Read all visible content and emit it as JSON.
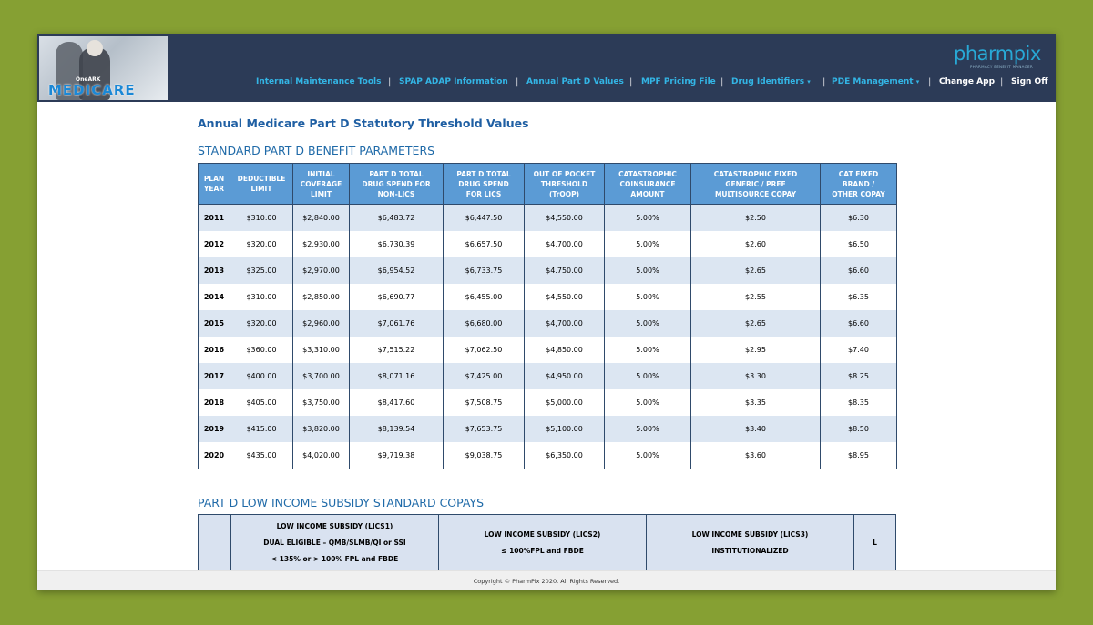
{
  "header": {
    "logo": {
      "small": "OneARK",
      "big": "MEDICARE"
    },
    "brand": {
      "name": "pharmpix",
      "tagline": "PHARMACY BENEFIT MANAGER"
    },
    "nav": [
      {
        "label": "Internal Maintenance Tools",
        "dropdown": false
      },
      {
        "label": "SPAP ADAP Information",
        "dropdown": false
      },
      {
        "label": "Annual Part D Values",
        "dropdown": false
      },
      {
        "label": "MPF Pricing File",
        "dropdown": false
      },
      {
        "label": "Drug Identifiers",
        "dropdown": true
      },
      {
        "label": "PDE Management",
        "dropdown": true
      }
    ],
    "change_app": "Change App",
    "sign_off": "Sign Off",
    "caret": "▾",
    "separator": "|"
  },
  "page": {
    "title": "Annual Medicare Part D Statutory Threshold Values",
    "section1_title": "STANDARD PART D BENEFIT PARAMETERS",
    "section2_title": "PART D LOW INCOME SUBSIDY STANDARD COPAYS"
  },
  "benefit_table": {
    "columns": [
      [
        "PLAN",
        "YEAR"
      ],
      [
        "DEDUCTIBLE",
        "LIMIT"
      ],
      [
        "INITIAL",
        "COVERAGE",
        "LIMIT"
      ],
      [
        "PART D TOTAL",
        "DRUG SPEND FOR",
        "NON-LICS"
      ],
      [
        "PART D TOTAL",
        "DRUG SPEND",
        "FOR LICS"
      ],
      [
        "OUT OF POCKET",
        "THRESHOLD",
        "(TrOOP)"
      ],
      [
        "CATASTROPHIC",
        "COINSURANCE",
        "AMOUNT"
      ],
      [
        "CATASTROPHIC FIXED",
        "GENERIC / PREF",
        "MULTISOURCE COPAY"
      ],
      [
        "CAT FIXED",
        "BRAND /",
        "OTHER COPAY"
      ]
    ],
    "rows": [
      [
        "2011",
        "$310.00",
        "$2,840.00",
        "$6,483.72",
        "$6,447.50",
        "$4,550.00",
        "5.00%",
        "$2.50",
        "$6.30"
      ],
      [
        "2012",
        "$320.00",
        "$2,930.00",
        "$6,730.39",
        "$6,657.50",
        "$4,700.00",
        "5.00%",
        "$2.60",
        "$6.50"
      ],
      [
        "2013",
        "$325.00",
        "$2,970.00",
        "$6,954.52",
        "$6,733.75",
        "$4.750.00",
        "5.00%",
        "$2.65",
        "$6.60"
      ],
      [
        "2014",
        "$310.00",
        "$2,850.00",
        "$6,690.77",
        "$6,455.00",
        "$4,550.00",
        "5.00%",
        "$2.55",
        "$6.35"
      ],
      [
        "2015",
        "$320.00",
        "$2,960.00",
        "$7,061.76",
        "$6,680.00",
        "$4,700.00",
        "5.00%",
        "$2.65",
        "$6.60"
      ],
      [
        "2016",
        "$360.00",
        "$3,310.00",
        "$7,515.22",
        "$7,062.50",
        "$4,850.00",
        "5.00%",
        "$2.95",
        "$7.40"
      ],
      [
        "2017",
        "$400.00",
        "$3,700.00",
        "$8,071.16",
        "$7,425.00",
        "$4,950.00",
        "5.00%",
        "$3.30",
        "$8.25"
      ],
      [
        "2018",
        "$405.00",
        "$3,750.00",
        "$8,417.60",
        "$7,508.75",
        "$5,000.00",
        "5.00%",
        "$3.35",
        "$8.35"
      ],
      [
        "2019",
        "$415.00",
        "$3,820.00",
        "$8,139.54",
        "$7,653.75",
        "$5,100.00",
        "5.00%",
        "$3.40",
        "$8.50"
      ],
      [
        "2020",
        "$435.00",
        "$4,020.00",
        "$9,719.38",
        "$9,038.75",
        "$6,350.00",
        "5.00%",
        "$3.60",
        "$8.95"
      ]
    ]
  },
  "lics_table": {
    "columns": [
      [
        ""
      ],
      [
        "LOW INCOME SUBSIDY (LICS1)",
        "DUAL ELIGIBLE – QMB/SLMB/QI or SSI",
        "< 135% or > 100% FPL and FBDE"
      ],
      [
        "LOW INCOME SUBSIDY (LICS2)",
        "≤ 100%FPL and FBDE"
      ],
      [
        "LOW INCOME SUBSIDY (LICS3)",
        "INSTITUTIONALIZED"
      ],
      [
        "L"
      ]
    ]
  },
  "footer": {
    "copyright": "Copyright © PharmPix 2020. All Rights Reserved."
  }
}
